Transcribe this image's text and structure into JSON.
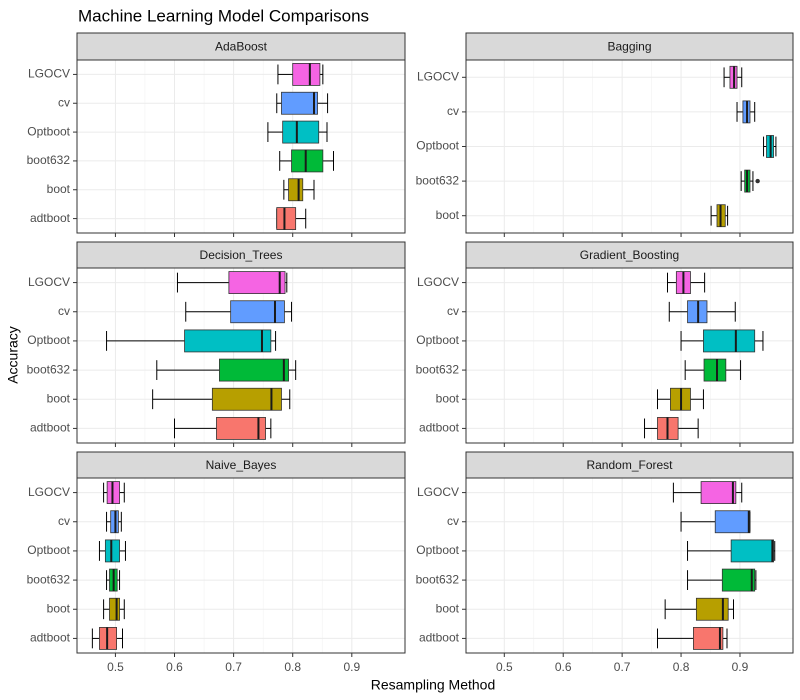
{
  "title": "Machine Learning Model Comparisons",
  "x_label": "Resampling Method",
  "y_label": "Accuracy",
  "chart_data": [
    {
      "type": "box",
      "title": "AdaBoost",
      "xlim": [
        0.435,
        0.99
      ],
      "xticks": [
        0.5,
        0.6,
        0.7,
        0.8,
        0.9
      ],
      "categories": [
        "adtboot",
        "boot",
        "boot632",
        "Optboot",
        "cv",
        "LGOCV"
      ],
      "colors": [
        "#F8766D",
        "#B79F00",
        "#00BA38",
        "#00BFC4",
        "#619CFF",
        "#F564E3"
      ],
      "boxes": [
        {
          "min": 0.773,
          "q1": 0.773,
          "median": 0.786,
          "q3": 0.805,
          "max": 0.822
        },
        {
          "min": 0.785,
          "q1": 0.793,
          "median": 0.81,
          "q3": 0.817,
          "max": 0.836
        },
        {
          "min": 0.778,
          "q1": 0.798,
          "median": 0.822,
          "q3": 0.851,
          "max": 0.869
        },
        {
          "min": 0.758,
          "q1": 0.783,
          "median": 0.807,
          "q3": 0.844,
          "max": 0.858
        },
        {
          "min": 0.773,
          "q1": 0.781,
          "median": 0.836,
          "q3": 0.842,
          "max": 0.859
        },
        {
          "min": 0.775,
          "q1": 0.8,
          "median": 0.829,
          "q3": 0.846,
          "max": 0.851
        }
      ]
    },
    {
      "type": "box",
      "title": "Bagging",
      "xlim": [
        0.435,
        0.99
      ],
      "xticks": [
        0.5,
        0.6,
        0.7,
        0.8,
        0.9
      ],
      "categories": [
        "boot",
        "boot632",
        "Optboot",
        "cv",
        "LGOCV"
      ],
      "colors": [
        "#B79F00",
        "#00BA38",
        "#00BFC4",
        "#619CFF",
        "#F564E3"
      ],
      "boxes": [
        {
          "min": 0.851,
          "q1": 0.861,
          "median": 0.867,
          "q3": 0.875,
          "max": 0.879
        },
        {
          "min": 0.902,
          "q1": 0.908,
          "median": 0.912,
          "q3": 0.917,
          "max": 0.922,
          "outliers": [
            0.93
          ]
        },
        {
          "min": 0.94,
          "q1": 0.945,
          "median": 0.952,
          "q3": 0.957,
          "max": 0.961
        },
        {
          "min": 0.895,
          "q1": 0.905,
          "median": 0.912,
          "q3": 0.917,
          "max": 0.925
        },
        {
          "min": 0.873,
          "q1": 0.883,
          "median": 0.89,
          "q3": 0.895,
          "max": 0.903
        }
      ]
    },
    {
      "type": "box",
      "title": "Decision_Trees",
      "xlim": [
        0.435,
        0.99
      ],
      "xticks": [
        0.5,
        0.6,
        0.7,
        0.8,
        0.9
      ],
      "categories": [
        "adtboot",
        "boot",
        "boot632",
        "Optboot",
        "cv",
        "LGOCV"
      ],
      "colors": [
        "#F8766D",
        "#B79F00",
        "#00BA38",
        "#00BFC4",
        "#619CFF",
        "#F564E3"
      ],
      "boxes": [
        {
          "min": 0.6,
          "q1": 0.671,
          "median": 0.742,
          "q3": 0.754,
          "max": 0.763
        },
        {
          "min": 0.563,
          "q1": 0.664,
          "median": 0.764,
          "q3": 0.781,
          "max": 0.795
        },
        {
          "min": 0.57,
          "q1": 0.676,
          "median": 0.785,
          "q3": 0.793,
          "max": 0.805
        },
        {
          "min": 0.485,
          "q1": 0.617,
          "median": 0.748,
          "q3": 0.763,
          "max": 0.771
        },
        {
          "min": 0.619,
          "q1": 0.695,
          "median": 0.77,
          "q3": 0.786,
          "max": 0.798
        },
        {
          "min": 0.605,
          "q1": 0.692,
          "median": 0.778,
          "q3": 0.787,
          "max": 0.79
        }
      ]
    },
    {
      "type": "box",
      "title": "Gradient_Boosting",
      "xlim": [
        0.435,
        0.99
      ],
      "xticks": [
        0.5,
        0.6,
        0.7,
        0.8,
        0.9
      ],
      "categories": [
        "adtboot",
        "boot",
        "boot632",
        "Optboot",
        "cv",
        "LGOCV"
      ],
      "colors": [
        "#F8766D",
        "#B79F00",
        "#00BA38",
        "#00BFC4",
        "#619CFF",
        "#F564E3"
      ],
      "boxes": [
        {
          "min": 0.738,
          "q1": 0.76,
          "median": 0.777,
          "q3": 0.795,
          "max": 0.829
        },
        {
          "min": 0.76,
          "q1": 0.782,
          "median": 0.8,
          "q3": 0.816,
          "max": 0.838
        },
        {
          "min": 0.807,
          "q1": 0.839,
          "median": 0.861,
          "q3": 0.876,
          "max": 0.901
        },
        {
          "min": 0.8,
          "q1": 0.838,
          "median": 0.893,
          "q3": 0.925,
          "max": 0.939
        },
        {
          "min": 0.78,
          "q1": 0.811,
          "median": 0.829,
          "q3": 0.844,
          "max": 0.892
        },
        {
          "min": 0.777,
          "q1": 0.792,
          "median": 0.804,
          "q3": 0.816,
          "max": 0.84
        }
      ]
    },
    {
      "type": "box",
      "title": "Naive_Bayes",
      "xlim": [
        0.435,
        0.99
      ],
      "xticks": [
        0.5,
        0.6,
        0.7,
        0.8,
        0.9
      ],
      "categories": [
        "adtboot",
        "boot",
        "boot632",
        "Optboot",
        "cv",
        "LGOCV"
      ],
      "colors": [
        "#F8766D",
        "#B79F00",
        "#00BA38",
        "#00BFC4",
        "#619CFF",
        "#F564E3"
      ],
      "boxes": [
        {
          "min": 0.461,
          "q1": 0.473,
          "median": 0.486,
          "q3": 0.502,
          "max": 0.512
        },
        {
          "min": 0.48,
          "q1": 0.49,
          "median": 0.502,
          "q3": 0.507,
          "max": 0.515
        },
        {
          "min": 0.485,
          "q1": 0.49,
          "median": 0.497,
          "q3": 0.503,
          "max": 0.507
        },
        {
          "min": 0.473,
          "q1": 0.483,
          "median": 0.493,
          "q3": 0.507,
          "max": 0.517
        },
        {
          "min": 0.485,
          "q1": 0.492,
          "median": 0.5,
          "q3": 0.505,
          "max": 0.51
        },
        {
          "min": 0.48,
          "q1": 0.486,
          "median": 0.495,
          "q3": 0.507,
          "max": 0.515
        }
      ]
    },
    {
      "type": "box",
      "title": "Random_Forest",
      "xlim": [
        0.435,
        0.99
      ],
      "xticks": [
        0.5,
        0.6,
        0.7,
        0.8,
        0.9
      ],
      "categories": [
        "adtboot",
        "boot",
        "boot632",
        "Optboot",
        "cv",
        "LGOCV"
      ],
      "colors": [
        "#F8766D",
        "#B79F00",
        "#00BA38",
        "#00BFC4",
        "#619CFF",
        "#F564E3"
      ],
      "boxes": [
        {
          "min": 0.76,
          "q1": 0.821,
          "median": 0.866,
          "q3": 0.871,
          "max": 0.878
        },
        {
          "min": 0.773,
          "q1": 0.826,
          "median": 0.871,
          "q3": 0.88,
          "max": 0.889
        },
        {
          "min": 0.811,
          "q1": 0.87,
          "median": 0.92,
          "q3": 0.925,
          "max": 0.927
        },
        {
          "min": 0.811,
          "q1": 0.885,
          "median": 0.955,
          "q3": 0.957,
          "max": 0.959
        },
        {
          "min": 0.8,
          "q1": 0.858,
          "median": 0.915,
          "q3": 0.917,
          "max": 0.917
        },
        {
          "min": 0.787,
          "q1": 0.834,
          "median": 0.888,
          "q3": 0.893,
          "max": 0.903
        }
      ]
    }
  ]
}
